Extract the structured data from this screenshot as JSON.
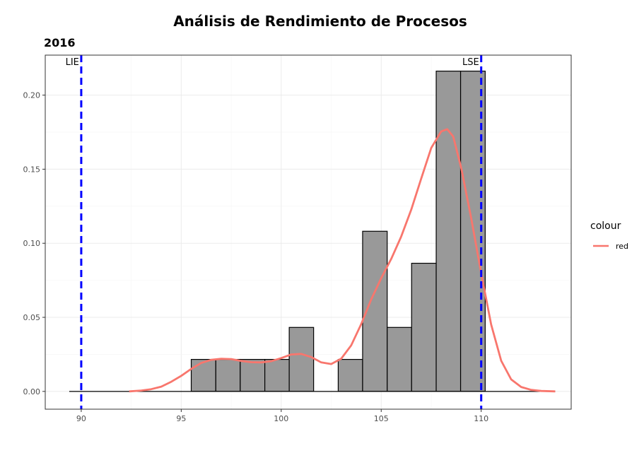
{
  "chart_data": {
    "type": "histogram",
    "title": "Análisis de Rendimiento de Procesos",
    "subtitle": "2016",
    "xlabel": "",
    "ylabel": "",
    "xlim": [
      88.2,
      114.5
    ],
    "ylim": [
      -0.012,
      0.227
    ],
    "x_ticks": [
      90,
      95,
      100,
      105,
      110
    ],
    "x_tick_labels": [
      "90",
      "95",
      "100",
      "105",
      "110"
    ],
    "y_ticks": [
      0,
      0.05,
      0.1,
      0.15,
      0.2
    ],
    "y_tick_labels": [
      "0.00",
      "0.05",
      "0.10",
      "0.15",
      "0.20"
    ],
    "grid": true,
    "bins": [
      {
        "x0": 95.5,
        "x1": 96.73,
        "density": 0.0216
      },
      {
        "x0": 96.73,
        "x1": 97.95,
        "density": 0.0216
      },
      {
        "x0": 97.95,
        "x1": 99.18,
        "density": 0.0216
      },
      {
        "x0": 99.18,
        "x1": 100.4,
        "density": 0.0216
      },
      {
        "x0": 100.4,
        "x1": 101.62,
        "density": 0.0432
      },
      {
        "x0": 101.62,
        "x1": 102.85,
        "density": 0.0
      },
      {
        "x0": 102.85,
        "x1": 104.07,
        "density": 0.0216
      },
      {
        "x0": 104.07,
        "x1": 105.3,
        "density": 0.1081
      },
      {
        "x0": 105.3,
        "x1": 106.52,
        "density": 0.0432
      },
      {
        "x0": 106.52,
        "x1": 107.75,
        "density": 0.0865
      },
      {
        "x0": 107.75,
        "x1": 108.97,
        "density": 0.2162
      },
      {
        "x0": 108.97,
        "x1": 110.2,
        "density": 0.2162
      }
    ],
    "baseline_range": [
      89.4,
      113.7
    ],
    "density_series": {
      "name": "red",
      "color": "#F8766D",
      "x": [
        92.4,
        93.0,
        93.5,
        94.0,
        94.5,
        95.0,
        95.5,
        96.0,
        96.5,
        97.0,
        97.5,
        98.0,
        98.5,
        99.0,
        99.5,
        100.0,
        100.5,
        101.0,
        101.5,
        102.0,
        102.5,
        103.0,
        103.5,
        104.0,
        104.5,
        105.0,
        105.5,
        106.0,
        106.5,
        107.0,
        107.5,
        108.0,
        108.3,
        108.6,
        109.0,
        109.5,
        110.0,
        110.5,
        111.0,
        111.5,
        112.0,
        112.5,
        113.0,
        113.7
      ],
      "y": [
        0.0,
        0.0006,
        0.0015,
        0.0032,
        0.0065,
        0.0105,
        0.0152,
        0.0192,
        0.0213,
        0.022,
        0.0218,
        0.0206,
        0.0197,
        0.0196,
        0.0204,
        0.0225,
        0.0249,
        0.0253,
        0.0232,
        0.0196,
        0.0185,
        0.0221,
        0.0311,
        0.0455,
        0.0621,
        0.0765,
        0.0894,
        0.1045,
        0.1226,
        0.1436,
        0.1643,
        0.1755,
        0.177,
        0.1721,
        0.1509,
        0.1168,
        0.0797,
        0.0451,
        0.0207,
        0.0081,
        0.003,
        0.001,
        0.0003,
        0.0
      ]
    },
    "reference_lines": [
      {
        "label": "LIE",
        "x": 90,
        "color": "#0000FF",
        "style": "dashed"
      },
      {
        "label": "LSE",
        "x": 110,
        "color": "#0000FF",
        "style": "dashed"
      }
    ],
    "legend": {
      "title": "colour",
      "entries": [
        {
          "label": "red",
          "color": "#F8766D"
        }
      ],
      "position": "right"
    },
    "bar_fill": "#999999",
    "bar_stroke": "#000000"
  }
}
